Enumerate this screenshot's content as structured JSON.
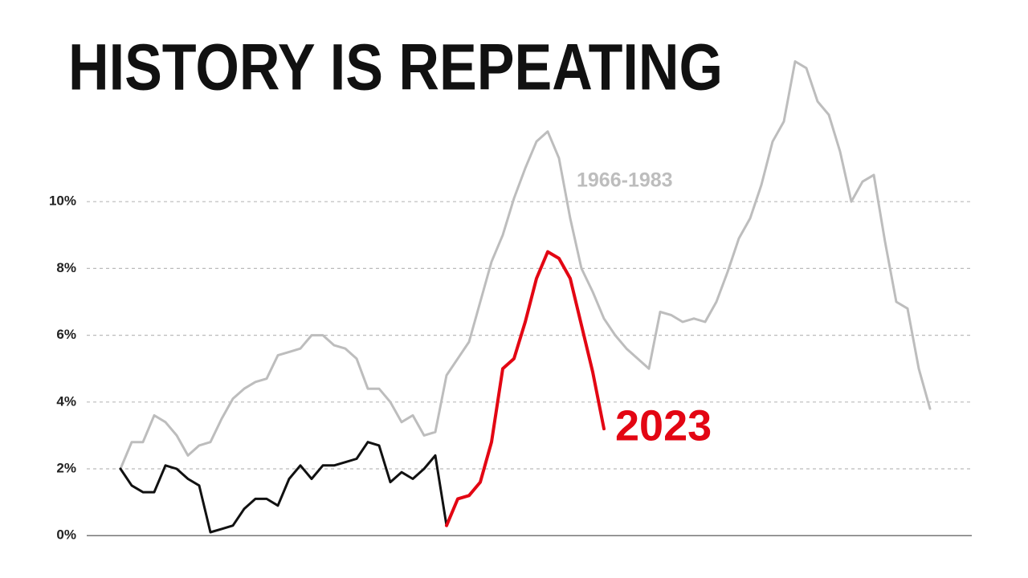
{
  "chart_data": {
    "type": "line",
    "title": "HISTORY IS REPEATING",
    "categories": [
      null,
      null,
      null,
      null,
      null,
      null,
      null,
      null,
      null,
      null,
      null,
      null,
      null,
      null,
      null,
      null,
      null,
      null,
      null,
      null,
      null,
      null,
      null,
      null,
      null,
      null,
      null,
      null,
      null,
      null,
      null,
      null,
      null,
      null,
      null,
      null,
      null,
      null,
      null,
      null,
      null,
      null,
      null,
      null,
      null,
      null,
      null,
      null,
      null,
      null,
      null,
      null,
      null,
      null,
      null,
      null,
      null,
      null,
      null,
      null,
      null,
      null,
      null,
      null,
      null,
      null,
      null,
      null,
      null,
      null,
      null,
      null,
      null
    ],
    "series": [
      {
        "name": "1966-1983",
        "color": "#bdbdbd",
        "values": [
          2.0,
          2.8,
          2.8,
          3.6,
          3.4,
          3.0,
          2.4,
          2.7,
          2.8,
          3.5,
          4.1,
          4.4,
          4.6,
          4.7,
          5.4,
          5.5,
          5.6,
          6.0,
          6.0,
          5.7,
          5.6,
          5.3,
          4.4,
          4.4,
          4.0,
          3.4,
          3.6,
          3.0,
          3.1,
          4.8,
          5.3,
          5.8,
          7.0,
          8.2,
          9.0,
          10.1,
          11.0,
          11.8,
          12.1,
          11.3,
          9.5,
          8.0,
          7.3,
          6.5,
          6.0,
          5.6,
          5.3,
          5.0,
          6.7,
          6.6,
          6.4,
          6.5,
          6.4,
          7.0,
          7.9,
          8.9,
          9.5,
          10.5,
          11.8,
          12.4,
          14.2,
          14.0,
          13.0,
          12.6,
          11.5,
          10.0,
          10.6,
          10.8,
          8.8,
          7.0,
          6.8,
          5.0,
          3.8
        ]
      },
      {
        "color": "#111111",
        "values": [
          2.0,
          1.5,
          1.3,
          1.3,
          2.1,
          2.0,
          1.7,
          1.5,
          0.1,
          0.2,
          0.3,
          0.8,
          1.1,
          1.1,
          0.9,
          1.7,
          2.1,
          1.7,
          2.1,
          2.1,
          2.2,
          2.3,
          2.8,
          2.7,
          1.6,
          1.9,
          1.7,
          2.0,
          2.4,
          0.3,
          null,
          null,
          null,
          null,
          null,
          null,
          null,
          null,
          null,
          null,
          null,
          null,
          null,
          null,
          null,
          null,
          null,
          null,
          null,
          null,
          null,
          null,
          null,
          null,
          null,
          null,
          null,
          null,
          null,
          null,
          null,
          null,
          null,
          null,
          null,
          null,
          null,
          null,
          null,
          null,
          null,
          null,
          null
        ]
      },
      {
        "name": "2023",
        "color": "#e30613",
        "values": [
          null,
          null,
          null,
          null,
          null,
          null,
          null,
          null,
          null,
          null,
          null,
          null,
          null,
          null,
          null,
          null,
          null,
          null,
          null,
          null,
          null,
          null,
          null,
          null,
          null,
          null,
          null,
          null,
          null,
          0.3,
          1.1,
          1.2,
          1.6,
          2.8,
          5.0,
          5.3,
          6.4,
          7.7,
          8.5,
          8.3,
          7.7,
          6.3,
          4.9,
          3.2,
          null,
          null,
          null,
          null,
          null,
          null,
          null,
          null,
          null,
          null,
          null,
          null,
          null,
          null,
          null,
          null,
          null,
          null,
          null,
          null,
          null,
          null,
          null,
          null,
          null,
          null,
          null,
          null,
          null
        ]
      }
    ],
    "ylim": [
      -0.5,
      14.5
    ],
    "yticks": [
      {
        "value": 0,
        "label": "0%"
      },
      {
        "value": 2,
        "label": "2%"
      },
      {
        "value": 4,
        "label": "4%"
      },
      {
        "value": 6,
        "label": "6%"
      },
      {
        "value": 8,
        "label": "8%"
      },
      {
        "value": 10,
        "label": "10%"
      }
    ],
    "grid": true
  }
}
